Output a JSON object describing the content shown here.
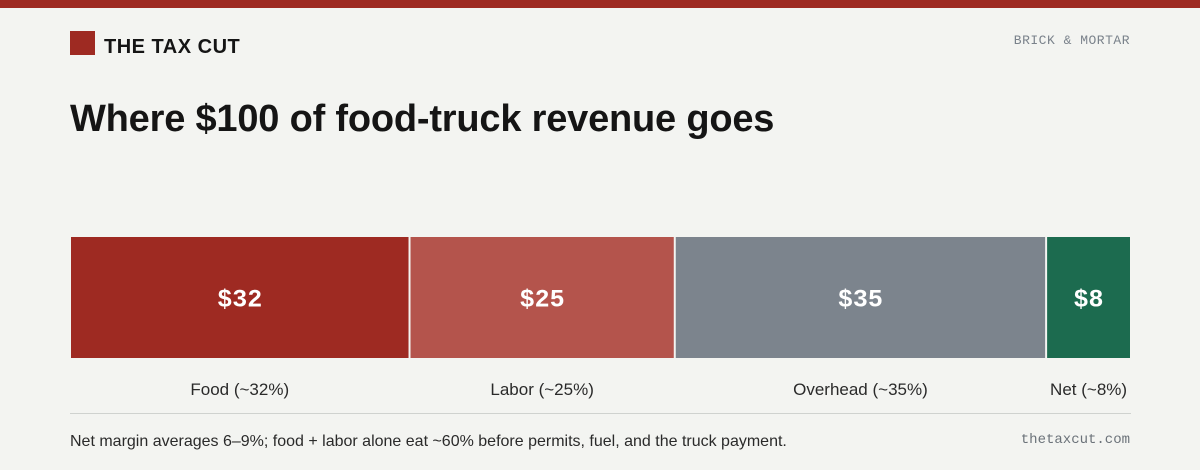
{
  "header": {
    "brand": "THE TAX CUT",
    "section": "BRICK & MORTAR"
  },
  "footer": {
    "note": "Net margin averages 6–9%; food + labor alone eat ~60% before permits, fuel, and the truck payment.",
    "site": "thetaxcut.com"
  },
  "chart_data": {
    "type": "bar",
    "orientation": "horizontal-stacked",
    "title": "Where $100 of food-truck revenue goes",
    "total": 100,
    "categories": [
      "Food (~32%)",
      "Labor (~25%)",
      "Overhead (~35%)",
      "Net (~8%)"
    ],
    "values": [
      32,
      25,
      35,
      8
    ],
    "data_labels": [
      "$32",
      "$25",
      "$35",
      "$8"
    ],
    "colors": [
      "#9e2a22",
      "#b4544c",
      "#7c848d",
      "#1c6b4f"
    ],
    "brand_color": "#9e2a22",
    "grid": false,
    "legend": "none"
  }
}
